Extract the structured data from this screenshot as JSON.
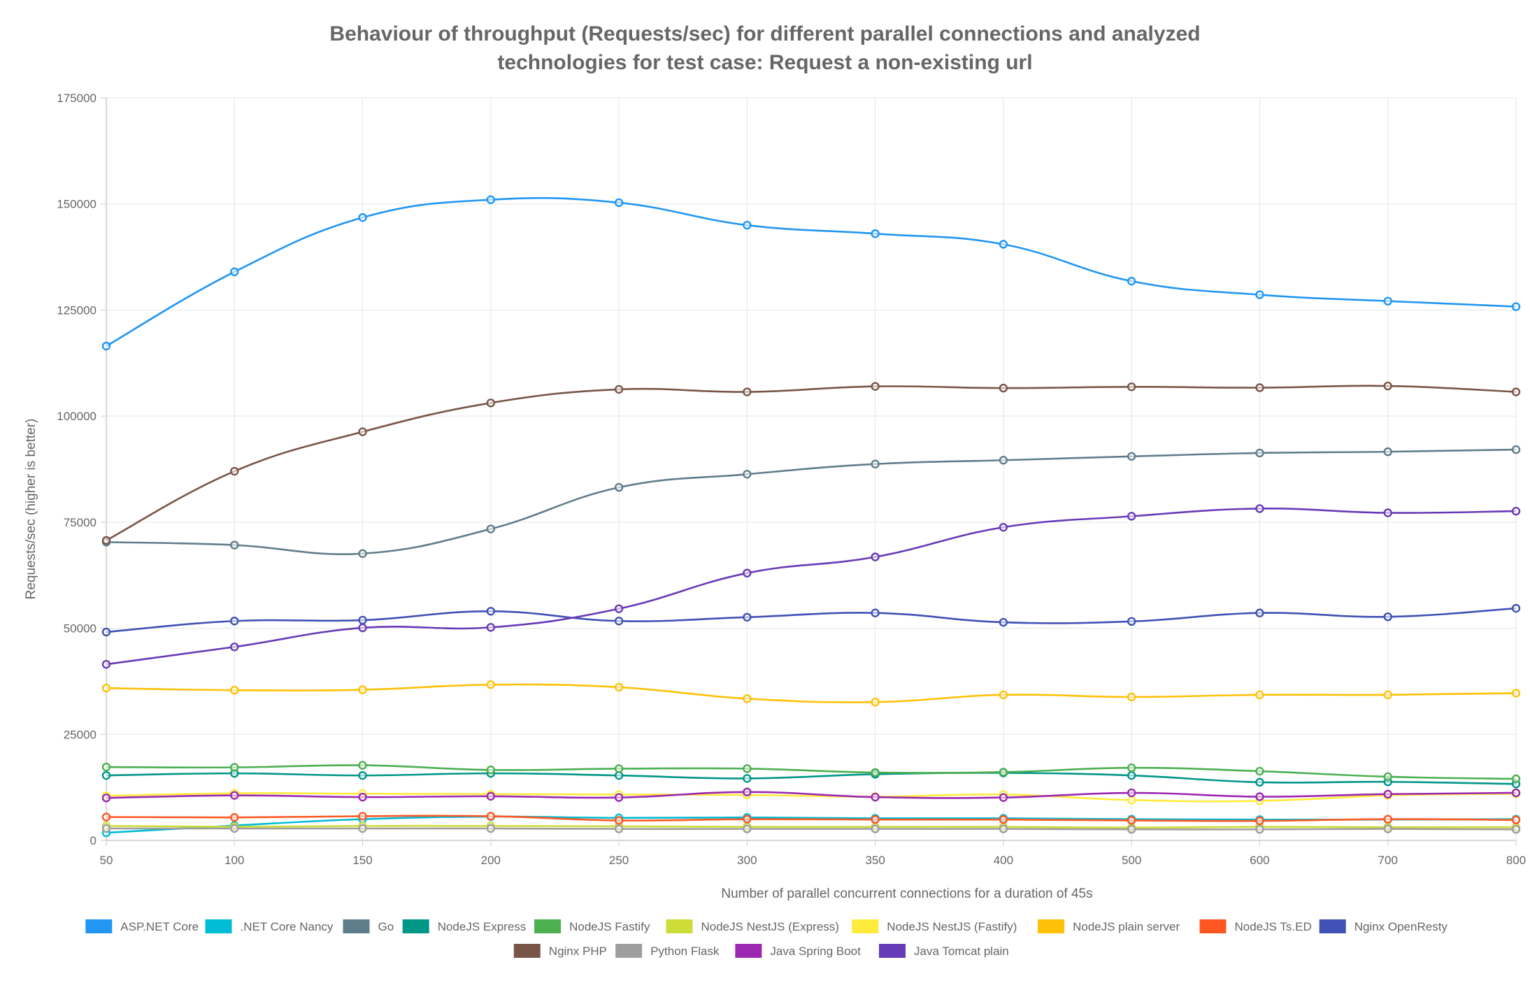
{
  "chart_data": {
    "type": "line",
    "title": "Behaviour of throughput (Requests/sec) for different parallel connections and analyzed technologies for test case: Request a non-existing url",
    "title_lines": [
      "Behaviour of throughput (Requests/sec) for different parallel connections and analyzed",
      "technologies for test case: Request a non-existing url"
    ],
    "xlabel": "Number of parallel concurrent connections for a duration of 45s",
    "ylabel": "Requests/sec (higher is better)",
    "x": [
      "50",
      "100",
      "150",
      "200",
      "250",
      "300",
      "350",
      "400",
      "500",
      "600",
      "700",
      "800"
    ],
    "ylim": [
      0,
      175000
    ],
    "yticks": [
      "0",
      "25000",
      "50000",
      "75000",
      "100000",
      "125000",
      "150000",
      "175000"
    ],
    "grid": true,
    "legend_position": "bottom",
    "series": [
      {
        "name": "ASP.NET Core",
        "color": "#2196F3",
        "values": [
          116500,
          134000,
          146800,
          151000,
          150300,
          145000,
          143000,
          140500,
          131800,
          128600,
          127100,
          125800
        ]
      },
      {
        "name": ".NET Core Nancy",
        "color": "#00BCD4",
        "values": [
          1800,
          3500,
          5000,
          5600,
          5300,
          5400,
          5200,
          5200,
          5000,
          4900,
          4900,
          5000
        ]
      },
      {
        "name": "Go",
        "color": "#607D8B",
        "values": [
          70300,
          69600,
          67600,
          73400,
          83200,
          86300,
          88700,
          89600,
          90500,
          91300,
          91600,
          92100
        ]
      },
      {
        "name": "NodeJS Express",
        "color": "#009688",
        "values": [
          15300,
          15800,
          15300,
          15800,
          15300,
          14600,
          15600,
          15900,
          15300,
          13700,
          13800,
          13300
        ]
      },
      {
        "name": "NodeJS Fastify",
        "color": "#4CAF50",
        "values": [
          17300,
          17200,
          17700,
          16600,
          16900,
          16900,
          16000,
          16100,
          17100,
          16300,
          15000,
          14500
        ]
      },
      {
        "name": "NodeJS NestJS (Express)",
        "color": "#CDDC39",
        "values": [
          3400,
          3200,
          3400,
          3400,
          3300,
          3200,
          3200,
          3200,
          3000,
          3200,
          3100,
          3100
        ]
      },
      {
        "name": "NodeJS NestJS (Fastify)",
        "color": "#FFEB3B",
        "values": [
          10500,
          11100,
          11000,
          10900,
          10800,
          10700,
          10300,
          10800,
          9500,
          9300,
          10600,
          11000
        ]
      },
      {
        "name": "NodeJS plain server",
        "color": "#FFC107",
        "values": [
          35900,
          35400,
          35500,
          36700,
          36100,
          33400,
          32600,
          34300,
          33800,
          34300,
          34300,
          34700
        ]
      },
      {
        "name": "NodeJS Ts.ED",
        "color": "#FF5722",
        "values": [
          5500,
          5400,
          5700,
          5700,
          4700,
          5000,
          4900,
          4900,
          4700,
          4600,
          5000,
          4800
        ]
      },
      {
        "name": "Nginx OpenResty",
        "color": "#3F51B5",
        "values": [
          49100,
          51700,
          51900,
          54000,
          51700,
          52600,
          53600,
          51400,
          51600,
          53600,
          52700,
          54700
        ]
      },
      {
        "name": "Nginx PHP",
        "color": "#795548",
        "values": [
          70700,
          87000,
          96300,
          103100,
          106300,
          105700,
          107000,
          106600,
          106900,
          106700,
          107100,
          105700
        ]
      },
      {
        "name": "Python Flask",
        "color": "#9E9E9E",
        "values": [
          2800,
          2800,
          2800,
          2800,
          2700,
          2700,
          2700,
          2700,
          2600,
          2600,
          2700,
          2600
        ]
      },
      {
        "name": "Java Spring Boot",
        "color": "#9C27B0",
        "values": [
          10000,
          10600,
          10200,
          10400,
          10100,
          11400,
          10200,
          10100,
          11200,
          10300,
          10900,
          11200
        ]
      },
      {
        "name": "Java Tomcat plain",
        "color": "#673AB7",
        "values": [
          41500,
          45600,
          50100,
          50200,
          54600,
          63000,
          66800,
          73800,
          76400,
          78200,
          77200,
          77600
        ]
      }
    ]
  }
}
